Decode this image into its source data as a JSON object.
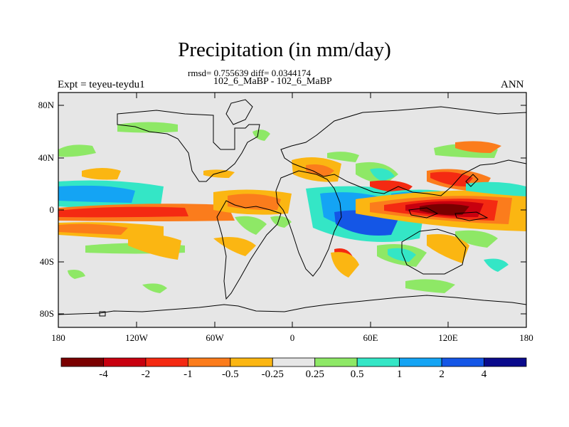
{
  "header": {
    "title": "Precipitation (in mm/day)",
    "stats": "rmsd= 0.755639 diff= 0.0344174",
    "cases": "102_6_MaBP - 102_6_MaBP",
    "experiment": "Expt = teyeu-teydu1",
    "period": "ANN"
  },
  "axes": {
    "lat_ticks": [
      "80N",
      "40N",
      "0",
      "40S",
      "80S"
    ],
    "lon_ticks": [
      "180",
      "120W",
      "60W",
      "0",
      "60E",
      "120E",
      "180"
    ]
  },
  "colorbar": {
    "colors": [
      "#7a0000",
      "#c8000f",
      "#f42a12",
      "#fb7c1c",
      "#fbb612",
      "#e6e6e6",
      "#8ee866",
      "#34e6c6",
      "#14a4f4",
      "#1456e6",
      "#0a0a8c"
    ],
    "labels": [
      "-4",
      "-2",
      "-1",
      "-0.5",
      "-0.25",
      "0.25",
      "0.5",
      "1",
      "2",
      "4"
    ]
  }
}
